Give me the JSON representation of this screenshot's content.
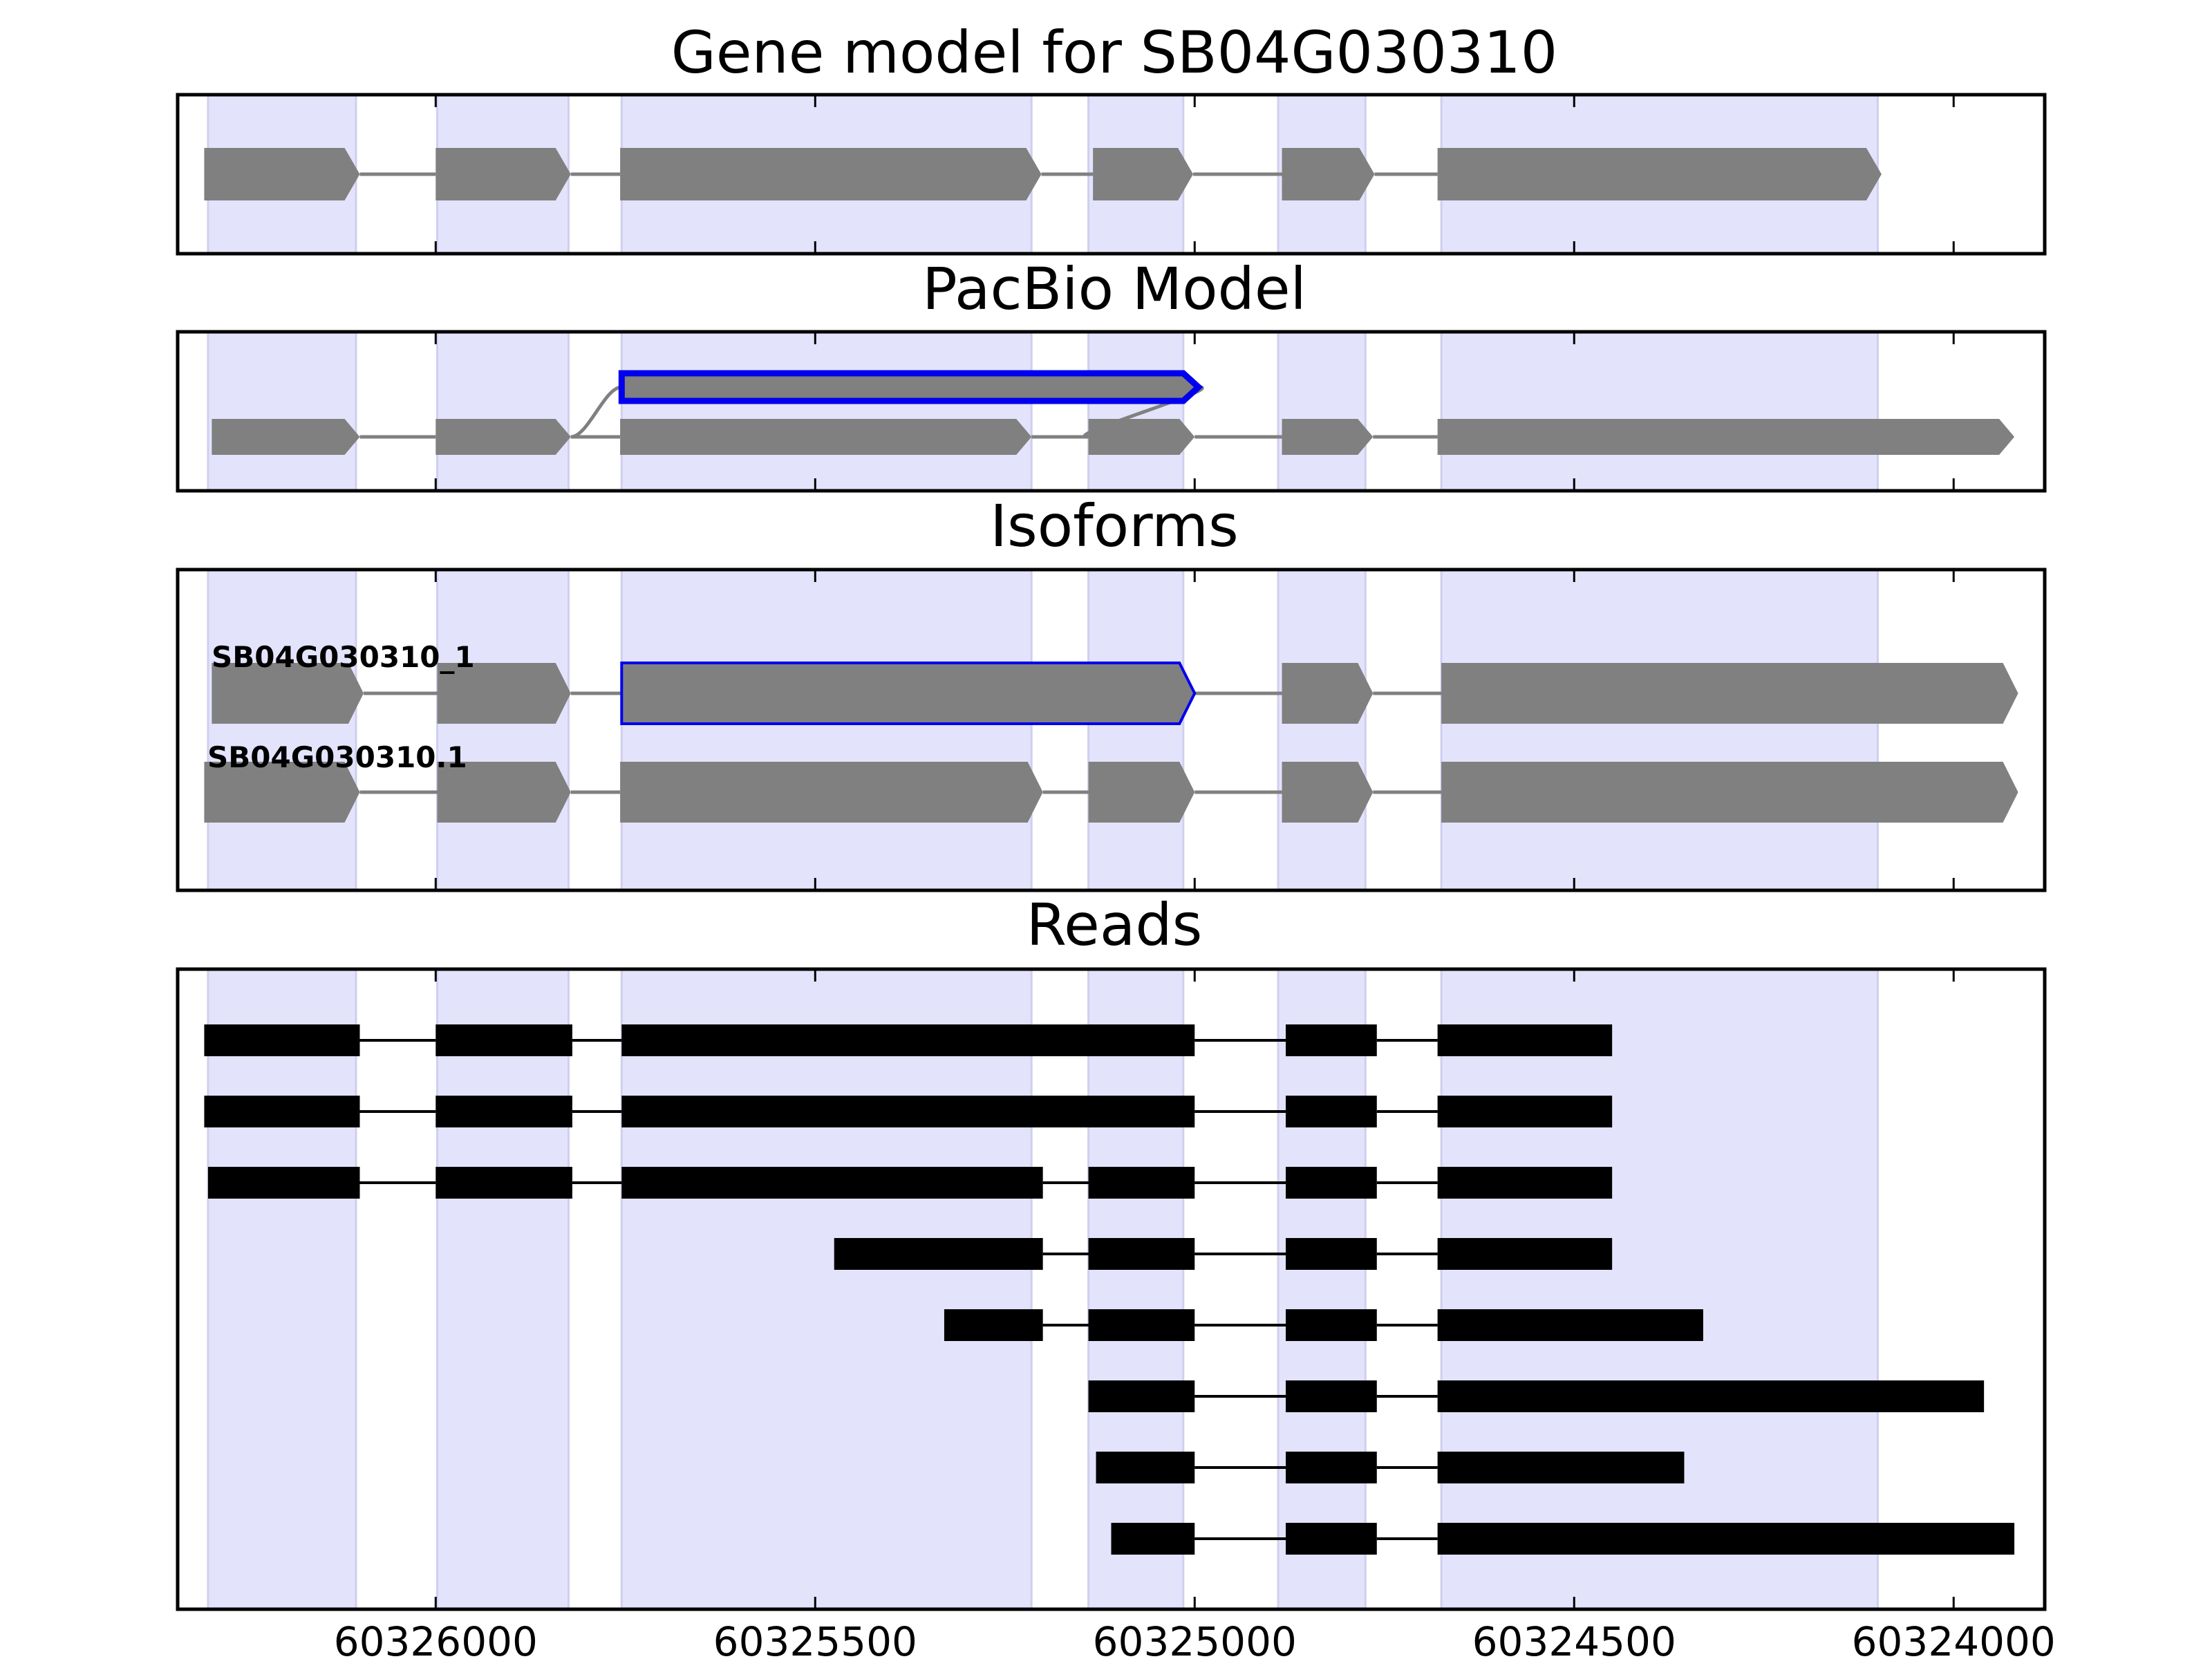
{
  "figure": {
    "colors": {
      "exon_region": "#e3e3fc",
      "exon_region_edge": "#cfcfee",
      "model_exon": "#808080",
      "intron_line": "#808080",
      "highlight": "#0000ee",
      "read": "#000000",
      "frame": "#000000"
    },
    "axis": {
      "x_min": 60326340,
      "x_max": 60323880,
      "orientation": "reversed",
      "ticks": [
        60326000,
        60325500,
        60325000,
        60324500,
        60324000
      ],
      "tick_labels": [
        "60326000",
        "60325500",
        "60325000",
        "60324500",
        "60324000"
      ]
    },
    "exon_regions": [
      [
        60326300,
        60326105
      ],
      [
        60325998,
        60325825
      ],
      [
        60325755,
        60325215
      ],
      [
        60325140,
        60325015
      ],
      [
        60324890,
        60324775
      ],
      [
        60324675,
        60324100
      ]
    ]
  },
  "panels": [
    {
      "title": "Gene model for SB04G030310",
      "tracks": [
        {
          "exons": [
            [
              60326305,
              60326100
            ],
            [
              60326000,
              60325822
            ],
            [
              60325757,
              60325202
            ],
            [
              60325134,
              60325002
            ],
            [
              60324885,
              60324763
            ],
            [
              60324680,
              60324095
            ]
          ]
        }
      ]
    },
    {
      "title": "PacBio Model",
      "tracks": [
        {
          "exons": [
            [
              60326295,
              60326100
            ],
            [
              60326000,
              60325822
            ],
            [
              60325757,
              60325215
            ],
            [
              60325140,
              60325000
            ],
            [
              60324885,
              60324765
            ],
            [
              60324680,
              60323920
            ]
          ]
        },
        {
          "exons": [
            [
              60325755,
              60324995
            ]
          ],
          "highlight": true
        }
      ]
    },
    {
      "title": "Isoforms",
      "tracks": [
        {
          "label": "SB04G030310_1",
          "exons": [
            [
              60326295,
              60326095
            ],
            [
              60325998,
              60325822
            ],
            [
              60325755,
              60325000
            ],
            [
              60324885,
              60324765
            ],
            [
              60324675,
              60323915
            ]
          ],
          "highlight_exon": 2
        },
        {
          "label": "SB04G030310.1",
          "exons": [
            [
              60326305,
              60326100
            ],
            [
              60325998,
              60325822
            ],
            [
              60325757,
              60325200
            ],
            [
              60325140,
              60325000
            ],
            [
              60324885,
              60324765
            ],
            [
              60324675,
              60323915
            ]
          ]
        }
      ]
    },
    {
      "title": "Reads",
      "reads": [
        [
          [
            60326305,
            60326100
          ],
          [
            60326000,
            60325820
          ],
          [
            60325755,
            60325000
          ],
          [
            60324880,
            60324760
          ],
          [
            60324680,
            60324450
          ]
        ],
        [
          [
            60326305,
            60326100
          ],
          [
            60326000,
            60325820
          ],
          [
            60325755,
            60325000
          ],
          [
            60324880,
            60324760
          ],
          [
            60324680,
            60324450
          ]
        ],
        [
          [
            60326300,
            60326100
          ],
          [
            60326000,
            60325820
          ],
          [
            60325755,
            60325200
          ],
          [
            60325140,
            60325000
          ],
          [
            60324880,
            60324760
          ],
          [
            60324680,
            60324450
          ]
        ],
        [
          [
            60325475,
            60325200
          ],
          [
            60325140,
            60325000
          ],
          [
            60324880,
            60324760
          ],
          [
            60324680,
            60324450
          ]
        ],
        [
          [
            60325330,
            60325200
          ],
          [
            60325140,
            60325000
          ],
          [
            60324880,
            60324760
          ],
          [
            60324680,
            60324330
          ]
        ],
        [
          [
            60325140,
            60325000
          ],
          [
            60324880,
            60324760
          ],
          [
            60324680,
            60323960
          ]
        ],
        [
          [
            60325130,
            60325000
          ],
          [
            60324880,
            60324760
          ],
          [
            60324680,
            60324355
          ]
        ],
        [
          [
            60325110,
            60325000
          ],
          [
            60324880,
            60324760
          ],
          [
            60324680,
            60323920
          ]
        ]
      ]
    }
  ]
}
